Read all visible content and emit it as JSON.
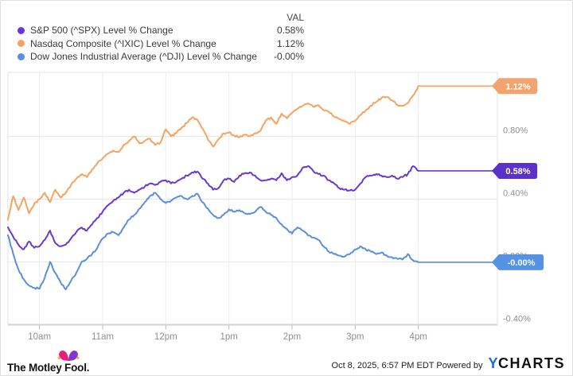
{
  "legend": {
    "val_header": "VAL",
    "items": [
      {
        "id": "spx",
        "label": "S&P 500 (^SPX) Level % Change",
        "value": "0.58%"
      },
      {
        "id": "ixic",
        "label": "Nasdaq Composite (^IXIC) Level % Change",
        "value": "1.12%"
      },
      {
        "id": "dji",
        "label": "Dow Jones Industrial Average (^DJI) Level % Change",
        "value": "-0.00%"
      }
    ]
  },
  "chart_data": {
    "type": "line",
    "title": "",
    "x_axis": {
      "unit": "time-of-day",
      "t_start": 570,
      "t_end": 960,
      "ticks": [
        {
          "t": 600,
          "label": "10am"
        },
        {
          "t": 660,
          "label": "11am"
        },
        {
          "t": 720,
          "label": "12pm"
        },
        {
          "t": 780,
          "label": "1pm"
        },
        {
          "t": 840,
          "label": "2pm"
        },
        {
          "t": 900,
          "label": "3pm"
        },
        {
          "t": 960,
          "label": "4pm"
        }
      ]
    },
    "y_axis": {
      "unit": "%",
      "range": [
        -0.4,
        1.21
      ],
      "ticks": [
        {
          "v": 0.8,
          "label": "0.80%"
        },
        {
          "v": 0.4,
          "label": "0.40%"
        },
        {
          "v": 0.0,
          "label": "0.00%",
          "hidden_behind_badge": true
        },
        {
          "v": -0.4,
          "label": "-0.40%"
        }
      ]
    },
    "series": [
      {
        "id": "dji",
        "name": "Dow Jones Industrial Average (^DJI) Level % Change",
        "color": "#5B8EDE",
        "badge_color": "#5592E4",
        "badge_label": "-0.00%",
        "final": -0.002,
        "t0": 570,
        "dt": 5,
        "values": [
          0.17,
          0.05,
          -0.05,
          -0.11,
          -0.15,
          -0.165,
          -0.17,
          -0.1,
          0.0,
          -0.07,
          -0.13,
          -0.175,
          -0.12,
          -0.07,
          0.0,
          0.02,
          0.05,
          0.09,
          0.15,
          0.18,
          0.19,
          0.17,
          0.22,
          0.27,
          0.3,
          0.34,
          0.38,
          0.42,
          0.44,
          0.4,
          0.375,
          0.39,
          0.41,
          0.42,
          0.4,
          0.42,
          0.435,
          0.38,
          0.34,
          0.3,
          0.28,
          0.3,
          0.335,
          0.32,
          0.33,
          0.31,
          0.305,
          0.32,
          0.35,
          0.32,
          0.3,
          0.28,
          0.24,
          0.21,
          0.18,
          0.22,
          0.2,
          0.17,
          0.155,
          0.14,
          0.1,
          0.065,
          0.05,
          0.04,
          0.035,
          0.05,
          0.08,
          0.1,
          0.08,
          0.065,
          0.05,
          0.06,
          0.04,
          0.03,
          0.02,
          0.015,
          0.05,
          0.01,
          -0.002
        ]
      },
      {
        "id": "spx",
        "name": "S&P 500 (^SPX) Level % Change",
        "color": "#6839D2",
        "badge_color": "#5C30CB",
        "badge_label": "0.58%",
        "final": 0.58,
        "t0": 570,
        "dt": 5,
        "values": [
          0.22,
          0.16,
          0.11,
          0.08,
          0.13,
          0.09,
          0.1,
          0.14,
          0.2,
          0.12,
          0.1,
          0.11,
          0.15,
          0.19,
          0.22,
          0.2,
          0.24,
          0.28,
          0.32,
          0.36,
          0.39,
          0.41,
          0.44,
          0.46,
          0.44,
          0.46,
          0.48,
          0.5,
          0.49,
          0.51,
          0.52,
          0.5,
          0.51,
          0.53,
          0.55,
          0.57,
          0.575,
          0.53,
          0.5,
          0.46,
          0.47,
          0.52,
          0.53,
          0.51,
          0.55,
          0.565,
          0.57,
          0.55,
          0.52,
          0.52,
          0.53,
          0.52,
          0.565,
          0.52,
          0.54,
          0.55,
          0.6,
          0.61,
          0.58,
          0.56,
          0.55,
          0.52,
          0.5,
          0.47,
          0.46,
          0.455,
          0.46,
          0.5,
          0.54,
          0.55,
          0.56,
          0.55,
          0.54,
          0.55,
          0.53,
          0.54,
          0.56,
          0.61,
          0.58
        ]
      },
      {
        "id": "ixic",
        "name": "Nasdaq Composite (^IXIC) Level % Change",
        "color": "#F7A35F",
        "badge_color": "#F3A36D",
        "badge_label": "1.12%",
        "final": 1.12,
        "t0": 570,
        "dt": 5,
        "values": [
          0.27,
          0.42,
          0.33,
          0.41,
          0.31,
          0.37,
          0.4,
          0.44,
          0.38,
          0.46,
          0.41,
          0.44,
          0.49,
          0.53,
          0.56,
          0.54,
          0.59,
          0.63,
          0.66,
          0.69,
          0.71,
          0.7,
          0.745,
          0.77,
          0.8,
          0.755,
          0.77,
          0.785,
          0.745,
          0.76,
          0.845,
          0.8,
          0.82,
          0.855,
          0.885,
          0.92,
          0.905,
          0.85,
          0.78,
          0.735,
          0.78,
          0.82,
          0.825,
          0.805,
          0.795,
          0.81,
          0.8,
          0.82,
          0.835,
          0.9,
          0.92,
          0.88,
          0.945,
          0.915,
          0.95,
          0.975,
          0.995,
          1.01,
          0.99,
          1.0,
          0.965,
          0.955,
          0.925,
          0.91,
          0.895,
          0.88,
          0.9,
          0.935,
          0.965,
          0.995,
          1.02,
          1.045,
          1.05,
          1.03,
          1.0,
          0.995,
          1.01,
          1.06,
          1.12
        ]
      }
    ],
    "grid": true,
    "legend_position": "top-left"
  },
  "footer": {
    "brand": "The Motley Fool.",
    "timestamp": "Oct 8, 2025, 6:57 PM EDT",
    "powered_by": "Powered by",
    "ycharts_y": "Y",
    "ycharts_charts": "CHARTS"
  }
}
